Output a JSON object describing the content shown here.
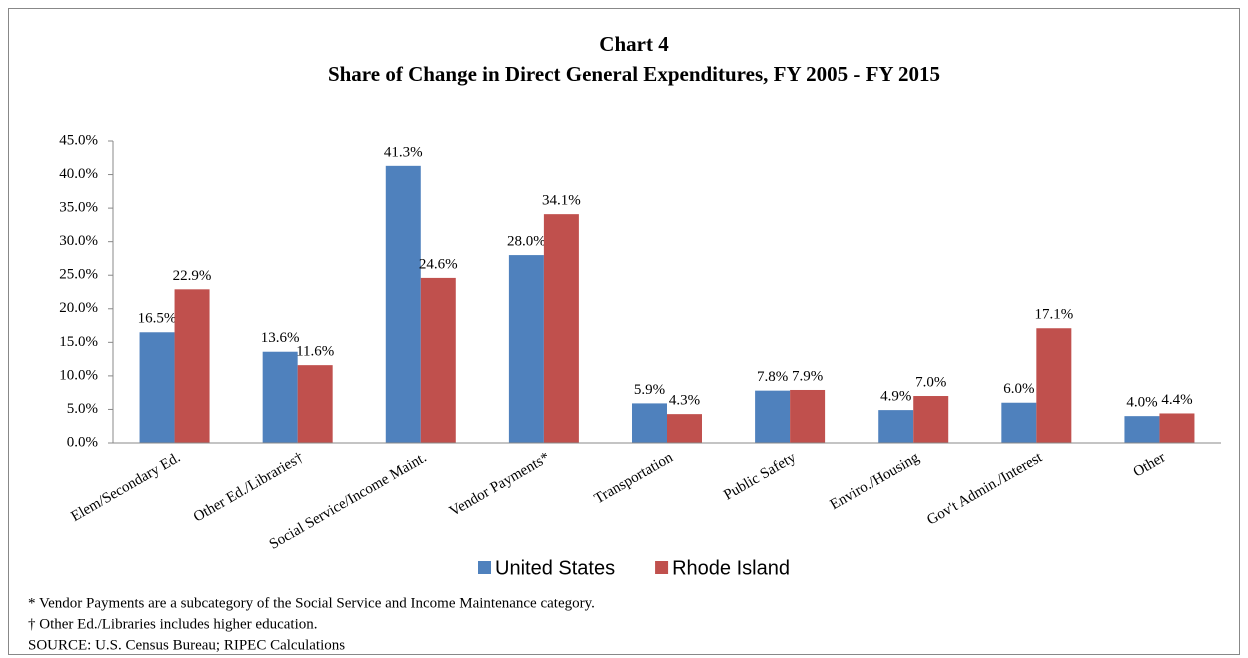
{
  "chart_data": {
    "type": "bar",
    "title": "Chart 4",
    "subtitle": "Share of Change in Direct General Expenditures, FY 2005 - FY 2015",
    "categories": [
      "Elem/Secondary Ed.",
      "Other Ed./Libraries†",
      "Social Service/Income Maint.",
      "Vendor Payments*",
      "Transportation",
      "Public Safety",
      "Enviro./Housing",
      "Gov't Admin./Interest",
      "Other"
    ],
    "series": [
      {
        "name": "United States",
        "color": "#4f81bd",
        "values": [
          16.5,
          13.6,
          41.3,
          28.0,
          5.9,
          7.8,
          4.9,
          6.0,
          4.0
        ],
        "value_labels": [
          "16.5%",
          "13.6%",
          "41.3%",
          "28.0%",
          "5.9%",
          "7.8%",
          "4.9%",
          "6.0%",
          "4.0%"
        ]
      },
      {
        "name": "Rhode Island",
        "color": "#c0504d",
        "values": [
          22.9,
          11.6,
          24.6,
          34.1,
          4.3,
          7.9,
          7.0,
          17.1,
          4.4
        ],
        "value_labels": [
          "22.9%",
          "11.6%",
          "24.6%",
          "34.1%",
          "4.3%",
          "7.9%",
          "7.0%",
          "17.1%",
          "4.4%"
        ]
      }
    ],
    "ylim": [
      0,
      45
    ],
    "yticks": [
      {
        "value": 0,
        "label": "0.0%"
      },
      {
        "value": 5,
        "label": "5.0%"
      },
      {
        "value": 10,
        "label": "10.0%"
      },
      {
        "value": 15,
        "label": "15.0%"
      },
      {
        "value": 20,
        "label": "20.0%"
      },
      {
        "value": 25,
        "label": "25.0%"
      },
      {
        "value": 30,
        "label": "30.0%"
      },
      {
        "value": 35,
        "label": "35.0%"
      },
      {
        "value": 40,
        "label": "40.0%"
      },
      {
        "value": 45,
        "label": "45.0%"
      }
    ],
    "grid": false,
    "legend": "bottom",
    "notes": [
      "* Vendor Payments are a subcategory of the Social Service and Income Maintenance category.",
      "† Other Ed./Libraries includes higher education.",
      "SOURCE: U.S. Census Bureau; RIPEC Calculations"
    ]
  }
}
